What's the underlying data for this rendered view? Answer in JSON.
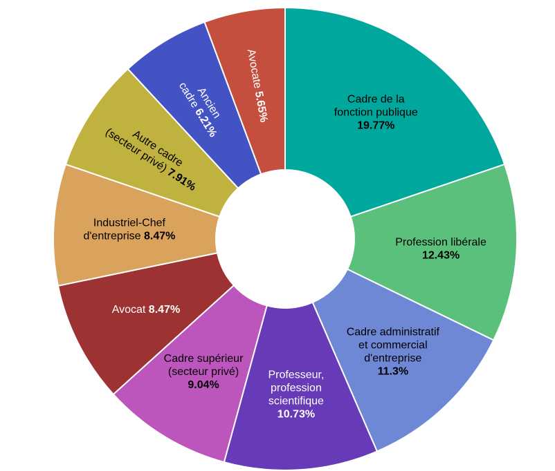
{
  "chart_data": {
    "type": "pie",
    "variant": "donut",
    "title": "",
    "legend": "none",
    "slices": [
      {
        "label_lines": [
          "Cadre de la",
          "fonction publique"
        ],
        "value": 19.77,
        "value_text": "19.77%",
        "color": "#00a79d",
        "text_color": "#000000",
        "placement": "horizontal"
      },
      {
        "label_lines": [
          "Profession libérale"
        ],
        "value": 12.43,
        "value_text": "12.43%",
        "color": "#5bc07b",
        "text_color": "#000000",
        "placement": "horizontal"
      },
      {
        "label_lines": [
          "Cadre administratif",
          "et commercial",
          "d'entreprise"
        ],
        "value": 11.3,
        "value_text": "11.3%",
        "color": "#6f88d6",
        "text_color": "#000000",
        "placement": "horizontal"
      },
      {
        "label_lines": [
          "Professeur,",
          "profession",
          "scientifique"
        ],
        "value": 10.73,
        "value_text": "10.73%",
        "color": "#673ab7",
        "text_color": "#ffffff",
        "placement": "horizontal"
      },
      {
        "label_lines": [
          "Cadre supérieur",
          "(secteur privé)"
        ],
        "value": 9.04,
        "value_text": "9.04%",
        "color": "#bc55bc",
        "text_color": "#000000",
        "placement": "horizontal"
      },
      {
        "label_lines": [
          "Avocat"
        ],
        "value": 8.47,
        "value_text": "8.47%",
        "color": "#9c3232",
        "text_color": "#ffffff",
        "placement": "horizontal"
      },
      {
        "label_lines": [
          "Industriel-Chef",
          "d'entreprise"
        ],
        "value": 8.47,
        "value_text": "8.47%",
        "color": "#d9a25d",
        "text_color": "#000000",
        "placement": "horizontal"
      },
      {
        "label_lines": [
          "Autre cadre",
          "(secteur privé)"
        ],
        "value": 7.91,
        "value_text": "7.91%",
        "color": "#c0b23f",
        "text_color": "#000000",
        "placement": "radial"
      },
      {
        "label_lines": [
          "Ancien",
          "cadre"
        ],
        "value": 6.21,
        "value_text": "6.21%",
        "color": "#4453c4",
        "text_color": "#ffffff",
        "placement": "radial"
      },
      {
        "label_lines": [
          "Avocate"
        ],
        "value": 5.65,
        "value_text": "5.65%",
        "color": "#c44f3e",
        "text_color": "#ffffff",
        "placement": "radial"
      }
    ]
  }
}
